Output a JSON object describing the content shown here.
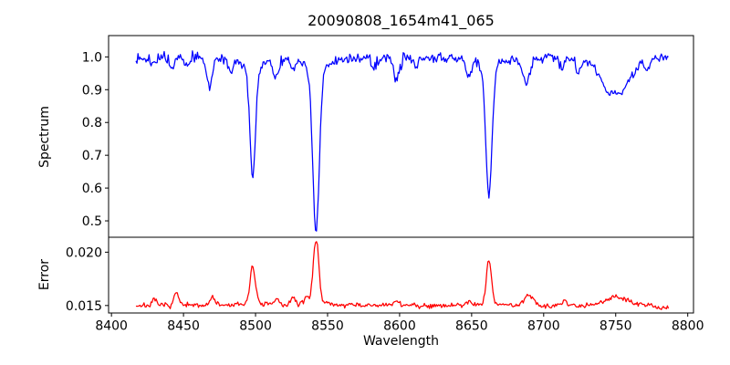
{
  "chart_data": {
    "type": "line",
    "title": "20090808_1654m41_065",
    "xlabel": "Wavelength",
    "grid": false,
    "legend": false,
    "xlim": [
      8398,
      8804
    ],
    "xticks": [
      8400,
      8450,
      8500,
      8550,
      8600,
      8650,
      8700,
      8750,
      8800
    ],
    "x_start": 8417,
    "x_end": 8787,
    "x_step": 0.7,
    "panels": [
      {
        "name": "spectrum",
        "ylabel": "Spectrum",
        "line_color": "#0000ff",
        "ylim": [
          0.45,
          1.065
        ],
        "yticks": [
          0.5,
          0.6,
          0.7,
          0.8,
          0.9,
          1.0
        ],
        "ytick_decimals": 1,
        "baseline": 1.0,
        "noise_sigma": 0.0072,
        "seed": 13,
        "features": [
          {
            "center": 8429,
            "amp": -0.028,
            "sigma": 1.5
          },
          {
            "center": 8442,
            "amp": -0.04,
            "sigma": 1.6
          },
          {
            "center": 8452,
            "amp": -0.028,
            "sigma": 1.4
          },
          {
            "center": 8468,
            "amp": -0.085,
            "sigma": 2.0
          },
          {
            "center": 8483,
            "amp": -0.045,
            "sigma": 1.5
          },
          {
            "center": 8498,
            "amp": -0.31,
            "sigma": 1.9,
            "wing_amp": -0.05,
            "wing_sigma": 6
          },
          {
            "center": 8514,
            "amp": -0.055,
            "sigma": 1.7
          },
          {
            "center": 8526,
            "amp": -0.03,
            "sigma": 1.4
          },
          {
            "center": 8542,
            "amp": -0.47,
            "sigma": 2.2,
            "wing_amp": -0.06,
            "wing_sigma": 7
          },
          {
            "center": 8582,
            "amp": -0.035,
            "sigma": 1.6
          },
          {
            "center": 8598,
            "amp": -0.065,
            "sigma": 2.0
          },
          {
            "center": 8611,
            "amp": -0.03,
            "sigma": 1.5
          },
          {
            "center": 8648,
            "amp": -0.055,
            "sigma": 1.8
          },
          {
            "center": 8662,
            "amp": -0.37,
            "sigma": 2.1,
            "wing_amp": -0.05,
            "wing_sigma": 6
          },
          {
            "center": 8688,
            "amp": -0.08,
            "sigma": 2.4
          },
          {
            "center": 8713,
            "amp": -0.035,
            "sigma": 1.7
          },
          {
            "center": 8724,
            "amp": -0.045,
            "sigma": 1.8
          },
          {
            "center": 8750,
            "amp": -0.115,
            "sigma": 10
          },
          {
            "center": 8772,
            "amp": -0.03,
            "sigma": 1.6
          }
        ]
      },
      {
        "name": "error",
        "ylabel": "Error",
        "line_color": "#ff0000",
        "ylim": [
          0.0143,
          0.0214
        ],
        "yticks": [
          0.015,
          0.02
        ],
        "ytick_decimals": 3,
        "baseline": 0.015,
        "noise_sigma": 0.00012,
        "seed": 7,
        "features": [
          {
            "center": 8430,
            "amp": 0.0005,
            "sigma": 1.5
          },
          {
            "center": 8445,
            "amp": 0.0012,
            "sigma": 1.6
          },
          {
            "center": 8470,
            "amp": 0.0008,
            "sigma": 1.8
          },
          {
            "center": 8498,
            "amp": 0.0033,
            "sigma": 1.7,
            "wing_amp": 0.0005,
            "wing_sigma": 4
          },
          {
            "center": 8515,
            "amp": 0.0006,
            "sigma": 1.6
          },
          {
            "center": 8526,
            "amp": 0.0007,
            "sigma": 1.5
          },
          {
            "center": 8535,
            "amp": 0.0006,
            "sigma": 1.5
          },
          {
            "center": 8542,
            "amp": 0.0056,
            "sigma": 1.9,
            "wing_amp": 0.0006,
            "wing_sigma": 5
          },
          {
            "center": 8598,
            "amp": 0.0005,
            "sigma": 1.8
          },
          {
            "center": 8648,
            "amp": 0.0004,
            "sigma": 1.6
          },
          {
            "center": 8662,
            "amp": 0.0038,
            "sigma": 1.7,
            "wing_amp": 0.0005,
            "wing_sigma": 4
          },
          {
            "center": 8690,
            "amp": 0.001,
            "sigma": 3.0
          },
          {
            "center": 8715,
            "amp": 0.0004,
            "sigma": 1.8
          },
          {
            "center": 8750,
            "amp": 0.0008,
            "sigma": 8
          },
          {
            "center": 8783,
            "amp": -0.0003,
            "sigma": 3
          }
        ]
      }
    ]
  }
}
